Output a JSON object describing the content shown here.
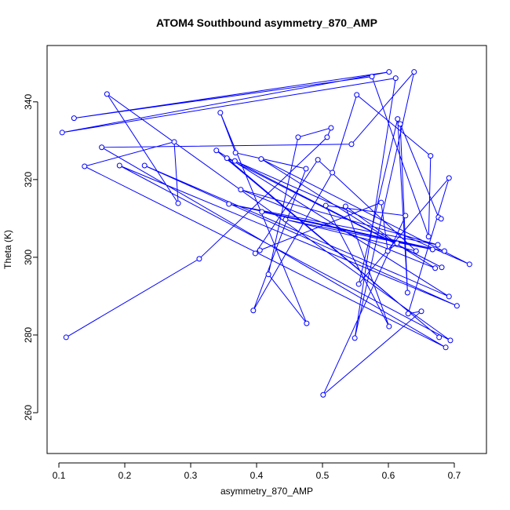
{
  "chart_data": {
    "type": "line",
    "title": "ATOM4 Southbound asymmetry_870_AMP",
    "x_label": "asymmetry_870_AMP",
    "y_label": "Theta (K)",
    "series": [
      {
        "color": "#0000ff",
        "x": [
          0.111,
          0.313,
          0.507,
          0.513,
          0.463,
          0.418,
          0.476,
          0.345,
          0.368,
          0.475,
          0.395,
          0.515,
          0.552,
          0.664,
          0.661,
          0.575,
          0.123,
          0.601,
          0.105,
          0.611,
          0.549,
          0.639,
          0.544,
          0.165,
          0.687,
          0.139,
          0.275,
          0.281,
          0.173,
          0.694,
          0.192,
          0.704,
          0.23,
          0.692,
          0.339,
          0.677,
          0.355,
          0.681,
          0.367,
          0.723,
          0.407,
          0.671,
          0.376,
          0.675,
          0.358,
          0.685,
          0.408,
          0.667,
          0.444,
          0.642,
          0.493,
          0.398,
          0.405,
          0.589,
          0.599,
          0.613,
          0.535,
          0.601,
          0.505,
          0.626,
          0.501,
          0.65,
          0.63,
          0.692,
          0.555,
          0.614,
          0.629,
          0.618,
          0.676,
          0.68
        ],
        "values": [
          279.4,
          299.6,
          330.9,
          333.3,
          330.9,
          295.6,
          283.0,
          337.2,
          326.9,
          322.8,
          286.3,
          321.8,
          341.8,
          326.1,
          305.3,
          346.5,
          335.8,
          347.7,
          332.1,
          346.1,
          279.2,
          347.7,
          329.1,
          328.3,
          276.8,
          323.4,
          329.7,
          313.9,
          342.0,
          278.6,
          323.6,
          287.5,
          323.6,
          289.9,
          327.5,
          279.4,
          325.5,
          297.4,
          324.8,
          298.2,
          325.3,
          297.2,
          317.4,
          303.2,
          313.7,
          301.6,
          311.7,
          302.0,
          309.7,
          301.6,
          325.1,
          301.0,
          301.8,
          314.1,
          301.6,
          303.6,
          313.1,
          282.2,
          313.3,
          310.7,
          264.6,
          286.1,
          285.5,
          320.4,
          293.1,
          335.6,
          290.9,
          334.3,
          310.3,
          309.9
        ]
      }
    ],
    "xlim": [
      0.0821,
      0.7488
    ],
    "ylim": [
      249.5,
      354.5
    ],
    "xticks": [
      0.1,
      0.2,
      0.3,
      0.4,
      0.5,
      0.6,
      0.7
    ],
    "yticks": [
      260,
      280,
      300,
      320,
      340
    ]
  }
}
